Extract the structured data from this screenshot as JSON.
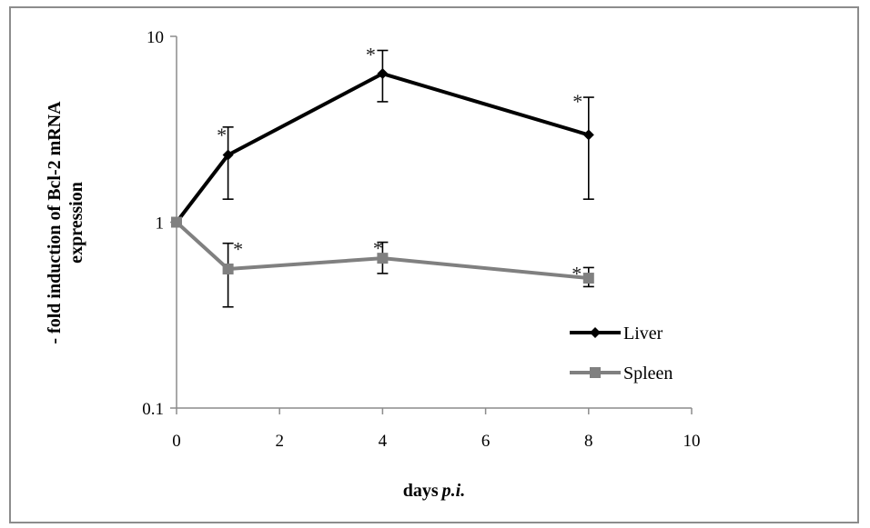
{
  "chart_data": {
    "type": "line",
    "xlabel_prefix": "days",
    "xlabel_italic": "p.i.",
    "ylabel_line1": "- fold induction of Bcl-2 mRNA",
    "ylabel_line2": "expression",
    "xlim": [
      0,
      10
    ],
    "ylim": [
      0.1,
      10
    ],
    "yscale": "log",
    "x_ticks": [
      "0",
      "2",
      "4",
      "6",
      "8",
      "10"
    ],
    "y_ticks": [
      "0.1",
      "1",
      "10"
    ],
    "grid": false,
    "legend_position": "right",
    "series": [
      {
        "name": "Liver",
        "color": "#000000",
        "marker": "diamond",
        "x": [
          0,
          1,
          4,
          8
        ],
        "y": [
          1.0,
          2.3,
          6.3,
          2.95
        ],
        "err_low": [
          null,
          1.33,
          4.45,
          1.33
        ],
        "err_high": [
          null,
          3.25,
          8.4,
          4.7
        ],
        "significance": [
          "",
          "*",
          "*",
          "*"
        ]
      },
      {
        "name": "Spleen",
        "color": "#808080",
        "marker": "square",
        "x": [
          0,
          1,
          4,
          8
        ],
        "y": [
          1.0,
          0.56,
          0.64,
          0.5
        ],
        "err_low": [
          null,
          0.35,
          0.53,
          0.45
        ],
        "err_high": [
          null,
          0.77,
          0.78,
          0.57
        ],
        "significance": [
          "",
          "*",
          "*",
          "*"
        ]
      }
    ]
  }
}
